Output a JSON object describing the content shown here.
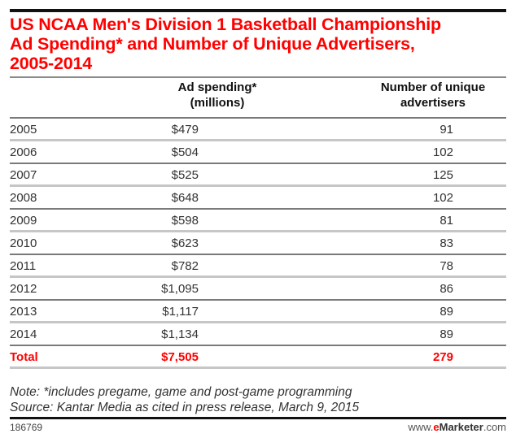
{
  "chart_data": {
    "type": "table",
    "title_lines": [
      "US NCAA Men's Division 1 Basketball Championship",
      "Ad Spending* and Number of Unique Advertisers,",
      "2005-2014"
    ],
    "columns": [
      {
        "line1": "Ad spending*",
        "line2": "(millions)"
      },
      {
        "line1": "Number of unique",
        "line2": "advertisers"
      }
    ],
    "rows": [
      {
        "year": "2005",
        "ad_spending": "$479",
        "advertisers": "91"
      },
      {
        "year": "2006",
        "ad_spending": "$504",
        "advertisers": "102"
      },
      {
        "year": "2007",
        "ad_spending": "$525",
        "advertisers": "125"
      },
      {
        "year": "2008",
        "ad_spending": "$648",
        "advertisers": "102"
      },
      {
        "year": "2009",
        "ad_spending": "$598",
        "advertisers": "81"
      },
      {
        "year": "2010",
        "ad_spending": "$623",
        "advertisers": "83"
      },
      {
        "year": "2011",
        "ad_spending": "$782",
        "advertisers": "78"
      },
      {
        "year": "2012",
        "ad_spending": "$1,095",
        "advertisers": "86"
      },
      {
        "year": "2013",
        "ad_spending": "$1,117",
        "advertisers": "89"
      },
      {
        "year": "2014",
        "ad_spending": "$1,134",
        "advertisers": "89"
      }
    ],
    "total": {
      "label": "Total",
      "ad_spending": "$7,505",
      "advertisers": "279"
    },
    "note": "Note: *includes pregame, game and post-game programming",
    "source": "Source: Kantar Media as cited in press release, March 9, 2015"
  },
  "footer": {
    "chart_id": "186769",
    "brand_prefix": "www.",
    "brand_e": "e",
    "brand_name": "Marketer",
    "brand_suffix": ".com"
  },
  "colors": {
    "accent": "#ff0000",
    "text": "#333333",
    "rule_dark": "#7a7a7a",
    "rule_light": "#c6c6c6"
  }
}
